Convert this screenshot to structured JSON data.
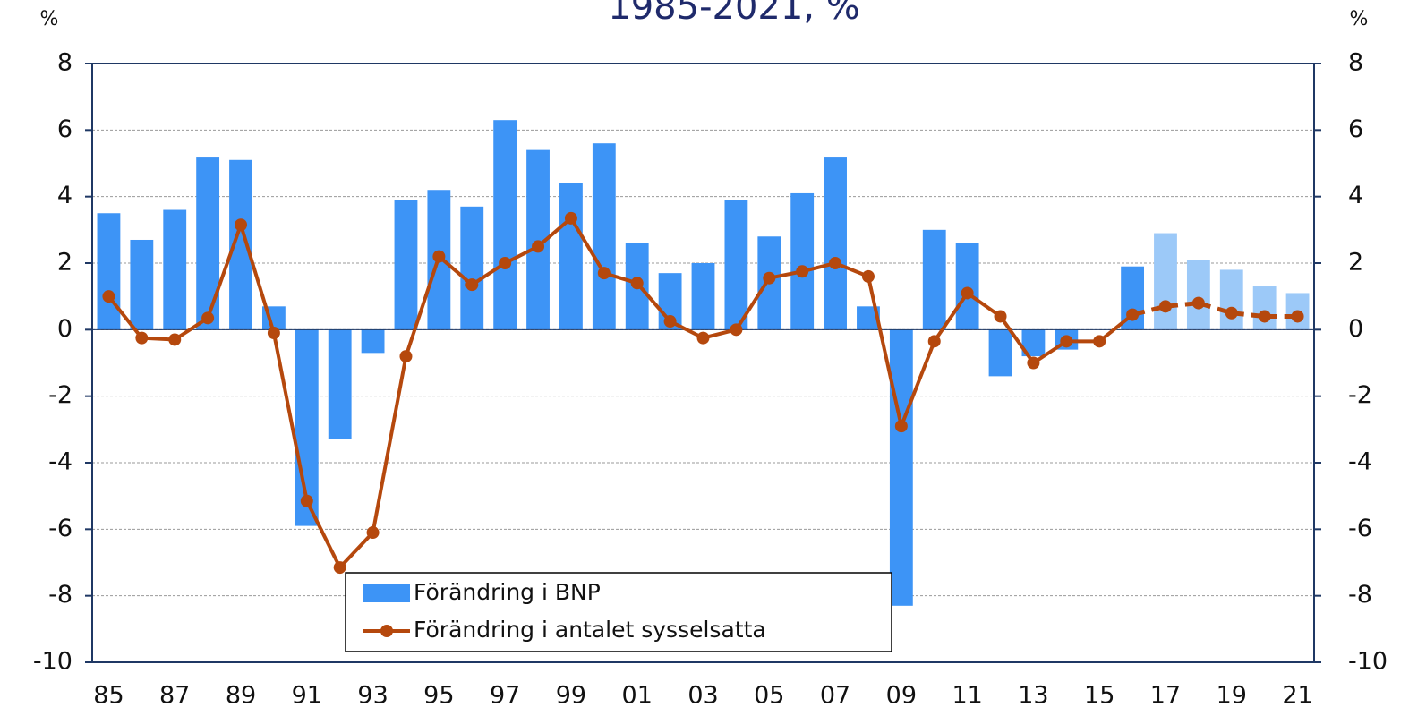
{
  "chart_data": {
    "type": "bar_line",
    "title": "1985-2021, %",
    "y_unit_label": "%",
    "y2_unit_label": "%",
    "categories": [
      "85",
      null,
      "87",
      null,
      "89",
      null,
      "91",
      null,
      "93",
      null,
      "95",
      null,
      "97",
      null,
      "99",
      null,
      "01",
      null,
      "03",
      null,
      "05",
      null,
      "07",
      null,
      "09",
      null,
      "11",
      null,
      "13",
      null,
      "15",
      null,
      "17",
      null,
      "19",
      null,
      "21"
    ],
    "ylim": [
      -10,
      8
    ],
    "yticks": [
      -10,
      -8,
      -6,
      -4,
      -2,
      0,
      2,
      4,
      6,
      8
    ],
    "y2lim": [
      -10,
      8
    ],
    "y2ticks": [
      -10,
      -8,
      -6,
      -4,
      -2,
      0,
      2,
      4,
      6,
      8
    ],
    "grid": true,
    "series": [
      {
        "name": "Förändring i BNP",
        "kind": "bar",
        "color": "#3d94f6",
        "colors": [
          "#3d94f6",
          "#3d94f6",
          "#3d94f6",
          "#3d94f6",
          "#3d94f6",
          "#3d94f6",
          "#3d94f6",
          "#3d94f6",
          "#3d94f6",
          "#3d94f6",
          "#3d94f6",
          "#3d94f6",
          "#3d94f6",
          "#3d94f6",
          "#3d94f6",
          "#3d94f6",
          "#3d94f6",
          "#3d94f6",
          "#3d94f6",
          "#3d94f6",
          "#3d94f6",
          "#3d94f6",
          "#3d94f6",
          "#3d94f6",
          "#3d94f6",
          "#3d94f6",
          "#3d94f6",
          "#3d94f6",
          "#3d94f6",
          "#3d94f6",
          "#3d94f6",
          "#3d94f6",
          "#9cc9f8",
          "#9cc9f8",
          "#9cc9f8",
          "#9cc9f8",
          "#9cc9f8"
        ],
        "values": [
          3.5,
          2.7,
          3.6,
          5.2,
          5.1,
          0.7,
          -5.9,
          -3.3,
          -0.7,
          3.9,
          4.2,
          3.7,
          6.3,
          5.4,
          4.4,
          5.6,
          2.6,
          1.7,
          2.0,
          3.9,
          2.8,
          4.1,
          5.2,
          0.7,
          -8.3,
          3.0,
          2.6,
          -1.4,
          -0.8,
          -0.6,
          0,
          1.9,
          2.9,
          2.1,
          1.8,
          1.3,
          1.1
        ]
      },
      {
        "name": "Förändring i antalet sysselsatta",
        "kind": "line",
        "color": "#b5480d",
        "dashed": [
          false,
          false,
          false,
          false,
          false,
          false,
          false,
          false,
          false,
          false,
          false,
          false,
          false,
          false,
          false,
          false,
          false,
          false,
          false,
          false,
          false,
          false,
          false,
          false,
          false,
          false,
          false,
          false,
          false,
          false,
          false,
          false,
          true,
          true,
          true,
          true,
          true
        ],
        "values": [
          1.0,
          -0.25,
          -0.3,
          0.35,
          3.15,
          -0.1,
          -5.15,
          -7.15,
          -6.1,
          -0.8,
          2.2,
          1.35,
          2.0,
          2.5,
          3.35,
          1.7,
          1.4,
          0.25,
          -0.25,
          0.0,
          1.55,
          1.75,
          2.0,
          1.6,
          -2.9,
          -0.35,
          1.1,
          0.4,
          -1.0,
          -0.35,
          -0.35,
          0.45,
          0.7,
          0.8,
          0.5,
          0.4,
          0.4
        ]
      }
    ]
  }
}
